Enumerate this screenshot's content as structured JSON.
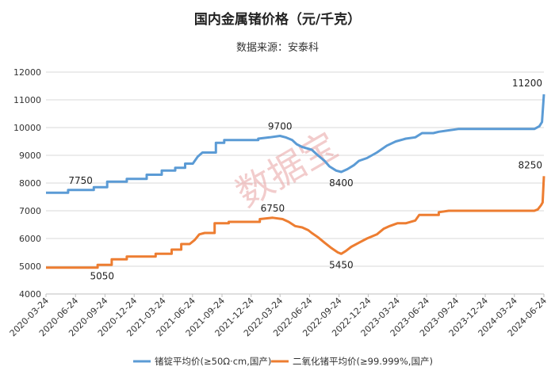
{
  "chart_data": {
    "type": "line",
    "title": "国内金属锗价格（元/千克）",
    "subtitle": "数据来源：安泰科",
    "watermark": "数据宝",
    "ylim": [
      4000,
      12000
    ],
    "yticks": [
      4000,
      5000,
      6000,
      7000,
      8000,
      9000,
      10000,
      11000,
      12000
    ],
    "ytick_labels": [
      "4000",
      "5000",
      "6000",
      "7000",
      "8000",
      "9000",
      "10000",
      "11000",
      "12000"
    ],
    "xlim": [
      "2020-03-24",
      "2024-06-24"
    ],
    "xticks": [
      "2020-03-24",
      "2020-06-24",
      "2020-09-24",
      "2020-12-24",
      "2021-03-24",
      "2021-06-24",
      "2021-09-24",
      "2021-12-24",
      "2022-03-24",
      "2022-06-24",
      "2022-09-24",
      "2022-12-24",
      "2023-03-24",
      "2023-06-24",
      "2023-09-24",
      "2023-12-24",
      "2024-03-24",
      "2024-06-24"
    ],
    "series": [
      {
        "name": "锗锭平均价(≥50Ω·cm,国产)",
        "color": "#5b9bd5",
        "points": [
          [
            "2020-03-24",
            7650
          ],
          [
            "2020-06-01",
            7650
          ],
          [
            "2020-06-01",
            7750
          ],
          [
            "2020-08-20",
            7750
          ],
          [
            "2020-08-20",
            7850
          ],
          [
            "2020-10-01",
            7850
          ],
          [
            "2020-10-01",
            8050
          ],
          [
            "2020-12-01",
            8050
          ],
          [
            "2020-12-01",
            8150
          ],
          [
            "2021-02-01",
            8150
          ],
          [
            "2021-02-01",
            8300
          ],
          [
            "2021-03-20",
            8300
          ],
          [
            "2021-03-20",
            8450
          ],
          [
            "2021-05-01",
            8450
          ],
          [
            "2021-05-01",
            8550
          ],
          [
            "2021-06-01",
            8550
          ],
          [
            "2021-06-01",
            8700
          ],
          [
            "2021-06-25",
            8700
          ],
          [
            "2021-07-10",
            8950
          ],
          [
            "2021-07-25",
            9100
          ],
          [
            "2021-09-05",
            9100
          ],
          [
            "2021-09-05",
            9450
          ],
          [
            "2021-10-01",
            9450
          ],
          [
            "2021-10-01",
            9550
          ],
          [
            "2022-01-15",
            9550
          ],
          [
            "2022-01-15",
            9600
          ],
          [
            "2022-02-20",
            9650
          ],
          [
            "2022-03-24",
            9700
          ],
          [
            "2022-04-10",
            9650
          ],
          [
            "2022-05-01",
            9550
          ],
          [
            "2022-05-15",
            9400
          ],
          [
            "2022-06-01",
            9300
          ],
          [
            "2022-07-01",
            9200
          ],
          [
            "2022-07-20",
            9000
          ],
          [
            "2022-08-10",
            8800
          ],
          [
            "2022-08-25",
            8600
          ],
          [
            "2022-09-15",
            8450
          ],
          [
            "2022-10-01",
            8400
          ],
          [
            "2022-10-20",
            8500
          ],
          [
            "2022-11-10",
            8650
          ],
          [
            "2022-11-25",
            8800
          ],
          [
            "2022-12-20",
            8900
          ],
          [
            "2023-01-20",
            9100
          ],
          [
            "2023-02-20",
            9350
          ],
          [
            "2023-03-20",
            9500
          ],
          [
            "2023-04-20",
            9600
          ],
          [
            "2023-05-20",
            9650
          ],
          [
            "2023-06-10",
            9800
          ],
          [
            "2023-07-15",
            9800
          ],
          [
            "2023-08-01",
            9850
          ],
          [
            "2023-09-01",
            9900
          ],
          [
            "2023-10-01",
            9950
          ],
          [
            "2024-05-25",
            9950
          ],
          [
            "2024-06-10",
            10050
          ],
          [
            "2024-06-18",
            10200
          ],
          [
            "2024-06-24",
            11200
          ]
        ]
      },
      {
        "name": "二氧化锗平均价(≥99.999%,国产)",
        "color": "#ed7d31",
        "points": [
          [
            "2020-03-24",
            4950
          ],
          [
            "2020-09-01",
            4950
          ],
          [
            "2020-09-01",
            5050
          ],
          [
            "2020-10-15",
            5050
          ],
          [
            "2020-10-15",
            5250
          ],
          [
            "2020-12-01",
            5250
          ],
          [
            "2020-12-01",
            5350
          ],
          [
            "2021-03-01",
            5350
          ],
          [
            "2021-03-01",
            5450
          ],
          [
            "2021-04-20",
            5450
          ],
          [
            "2021-04-20",
            5600
          ],
          [
            "2021-05-20",
            5600
          ],
          [
            "2021-05-20",
            5800
          ],
          [
            "2021-06-15",
            5800
          ],
          [
            "2021-07-01",
            5950
          ],
          [
            "2021-07-15",
            6150
          ],
          [
            "2021-08-01",
            6200
          ],
          [
            "2021-09-01",
            6200
          ],
          [
            "2021-09-01",
            6550
          ],
          [
            "2021-10-15",
            6550
          ],
          [
            "2021-10-15",
            6600
          ],
          [
            "2022-01-20",
            6600
          ],
          [
            "2022-01-20",
            6700
          ],
          [
            "2022-03-01",
            6750
          ],
          [
            "2022-04-01",
            6700
          ],
          [
            "2022-04-20",
            6600
          ],
          [
            "2022-05-10",
            6450
          ],
          [
            "2022-06-01",
            6400
          ],
          [
            "2022-06-20",
            6300
          ],
          [
            "2022-07-01",
            6200
          ],
          [
            "2022-07-20",
            6050
          ],
          [
            "2022-08-10",
            5850
          ],
          [
            "2022-09-01",
            5650
          ],
          [
            "2022-09-20",
            5500
          ],
          [
            "2022-10-01",
            5450
          ],
          [
            "2022-10-15",
            5550
          ],
          [
            "2022-11-01",
            5700
          ],
          [
            "2022-11-25",
            5850
          ],
          [
            "2022-12-20",
            6000
          ],
          [
            "2023-01-20",
            6150
          ],
          [
            "2023-02-10",
            6350
          ],
          [
            "2023-03-01",
            6450
          ],
          [
            "2023-03-25",
            6550
          ],
          [
            "2023-04-20",
            6550
          ],
          [
            "2023-05-20",
            6650
          ],
          [
            "2023-06-01",
            6850
          ],
          [
            "2023-08-01",
            6850
          ],
          [
            "2023-08-01",
            6950
          ],
          [
            "2023-09-01",
            7000
          ],
          [
            "2024-05-25",
            7000
          ],
          [
            "2024-06-05",
            7050
          ],
          [
            "2024-06-15",
            7200
          ],
          [
            "2024-06-20",
            7300
          ],
          [
            "2024-06-24",
            8250
          ]
        ]
      }
    ],
    "annotations": [
      {
        "series": 0,
        "x": "2020-07-10",
        "y": 7750,
        "text": "7750",
        "pos": "above"
      },
      {
        "series": 0,
        "x": "2022-03-24",
        "y": 9700,
        "text": "9700",
        "pos": "above"
      },
      {
        "series": 0,
        "x": "2022-10-01",
        "y": 8400,
        "text": "8400",
        "pos": "below"
      },
      {
        "series": 0,
        "x": "2024-06-24",
        "y": 11200,
        "text": "11200",
        "pos": "above-left"
      },
      {
        "series": 1,
        "x": "2020-09-15",
        "y": 5050,
        "text": "5050",
        "pos": "below"
      },
      {
        "series": 1,
        "x": "2022-03-01",
        "y": 6750,
        "text": "6750",
        "pos": "above"
      },
      {
        "series": 1,
        "x": "2022-10-01",
        "y": 5450,
        "text": "5450",
        "pos": "below"
      },
      {
        "series": 1,
        "x": "2024-06-24",
        "y": 8250,
        "text": "8250",
        "pos": "above-left"
      }
    ]
  }
}
